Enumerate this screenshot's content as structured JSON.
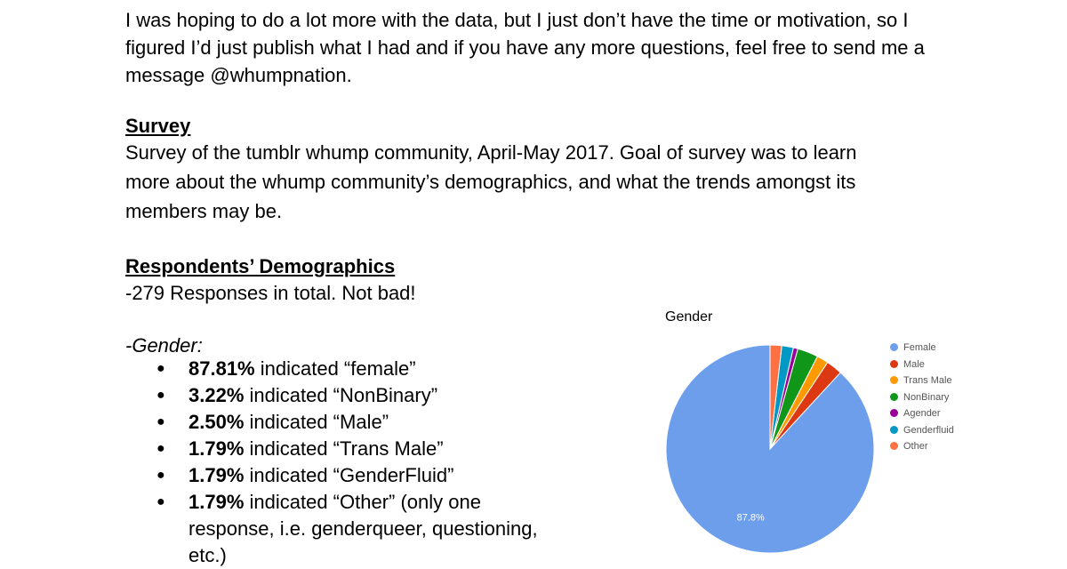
{
  "intro": {
    "lines": [
      " I was hoping to do a lot more with the data, but I just don’t have the time or motivation, so I",
      "figured I’d just publish what I had and if you have any more questions, feel free to send me a",
      "message @whumpnation."
    ]
  },
  "survey": {
    "heading": "Survey",
    "lines": [
      "Survey of the tumblr whump community, April-May 2017. Goal of survey was to learn",
      "more about the whump community’s demographics, and what the trends amongst its",
      "members may be."
    ]
  },
  "demographics": {
    "heading": "Respondents’ Demographics",
    "responses": "-279 Responses in total. Not bad!",
    "gender_label": "-Gender:",
    "bullet": "●",
    "items": [
      {
        "pct": "87.81%",
        "text": " indicated “female”"
      },
      {
        "pct": "3.22%",
        "text": " indicated “NonBinary”"
      },
      {
        "pct": "2.50%",
        "text": " indicated “Male”"
      },
      {
        "pct": "1.79%",
        "text": " indicated “Trans Male”"
      },
      {
        "pct": "1.79%",
        "text": " indicated “GenderFluid”"
      },
      {
        "pct": "1.79%",
        "text": " indicated “Other” (only one response, i.e. genderqueer, questioning, etc.)"
      }
    ]
  },
  "chart_data": {
    "type": "pie",
    "title": "Gender",
    "categories": [
      "Female",
      "Male",
      "Trans Male",
      "NonBinary",
      "Agender",
      "Genderfluid",
      "Other"
    ],
    "values": [
      87.8,
      2.5,
      1.8,
      3.2,
      0.7,
      1.8,
      1.8
    ],
    "colors": [
      "#6d9eeb",
      "#dc3912",
      "#ff9900",
      "#109618",
      "#990099",
      "#0099c6",
      "#ff7043"
    ],
    "slice_labels": [
      "87.8%",
      "",
      "",
      "",
      "",
      "",
      ""
    ],
    "legend_position": "right"
  }
}
